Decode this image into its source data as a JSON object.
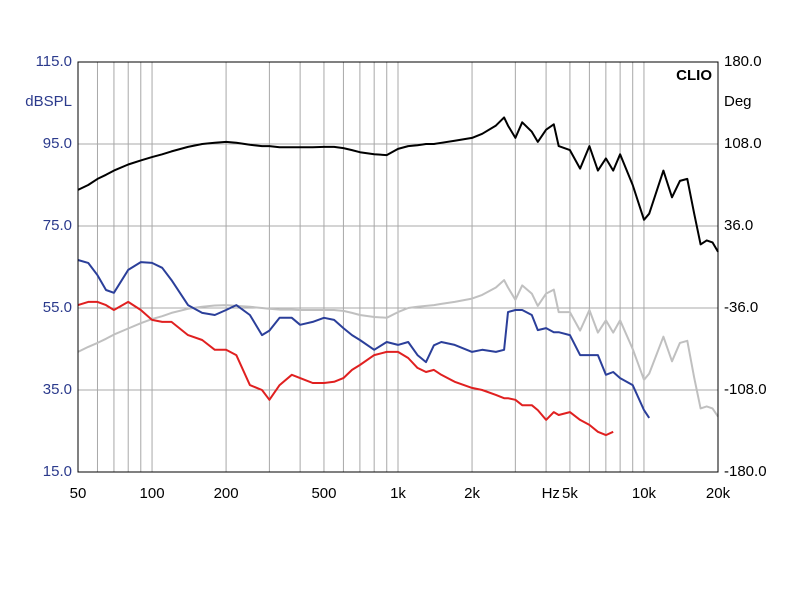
{
  "chart_data": {
    "type": "line",
    "brand": "CLIO",
    "ylabel": "dBSPL",
    "y2label": "Deg",
    "xlabel": "Hz",
    "xscale": "log",
    "grid": true,
    "xlim": [
      50,
      20000
    ],
    "xticks": [
      50,
      100,
      200,
      500,
      {
        "value": 1000,
        "label": "1k"
      },
      {
        "value": 2000,
        "label": "2k"
      },
      {
        "value": 5000,
        "label": "5k"
      },
      {
        "value": 10000,
        "label": "10k"
      },
      {
        "value": 20000,
        "label": "20k"
      }
    ],
    "x_minor_grid": [
      60,
      70,
      80,
      90,
      300,
      400,
      600,
      700,
      800,
      900,
      3000,
      4000,
      6000,
      7000,
      8000,
      9000
    ],
    "ylim": [
      15,
      115
    ],
    "yticks": [
      {
        "value": 15,
        "label": "15.0"
      },
      {
        "value": 35,
        "label": "35.0"
      },
      {
        "value": 55,
        "label": "55.0"
      },
      {
        "value": 75,
        "label": "75.0"
      },
      {
        "value": 95,
        "label": "95.0"
      },
      {
        "value": 115,
        "label": "115.0"
      }
    ],
    "y2lim": [
      -180,
      180
    ],
    "y2ticks": [
      {
        "value": -180,
        "label": "-180.0"
      },
      {
        "value": -108,
        "label": "-108.0"
      },
      {
        "value": -36,
        "label": "-36.0"
      },
      {
        "value": 36,
        "label": "36.0"
      },
      {
        "value": 108,
        "label": "108.0"
      },
      {
        "value": 180,
        "label": "180.0"
      }
    ],
    "x": [
      50,
      55,
      60,
      65,
      70,
      80,
      90,
      100,
      110,
      120,
      140,
      160,
      180,
      200,
      220,
      250,
      280,
      300,
      330,
      370,
      400,
      450,
      500,
      550,
      600,
      650,
      700,
      800,
      900,
      1000,
      1100,
      1200,
      1300,
      1400,
      1500,
      1700,
      2000,
      2200,
      2500,
      2700,
      2800,
      3000,
      3200,
      3500,
      3700,
      4000,
      4300,
      4500,
      5000,
      5500,
      6000,
      6500,
      7000,
      7500,
      8000,
      9000,
      10000,
      10500,
      12000,
      13000,
      14000,
      15000,
      16000,
      17000,
      18000,
      19000,
      20000
    ],
    "series": [
      {
        "color": "#000000",
        "values": [
          83.8,
          85,
          86.5,
          87.5,
          88.5,
          90,
          91,
          91.8,
          92.5,
          93.2,
          94.3,
          95,
          95.3,
          95.5,
          95.3,
          94.8,
          94.5,
          94.5,
          94.2,
          94.2,
          94.2,
          94.2,
          94.3,
          94.3,
          94,
          93.5,
          93,
          92.5,
          92.3,
          93.8,
          94.5,
          94.7,
          95,
          95,
          95.3,
          95.8,
          96.5,
          97.5,
          99.5,
          101.5,
          99.5,
          96.5,
          100.3,
          98,
          95.5,
          98.5,
          99.8,
          94.5,
          93.5,
          89,
          94.5,
          88.5,
          91.5,
          88.5,
          92.5,
          85,
          76.5,
          78,
          88.5,
          82,
          86,
          86.5,
          78,
          70.5,
          71.5,
          71,
          68.7
        ]
      },
      {
        "color": "#c0c0c0",
        "values": [
          44.3,
          45.5,
          46.5,
          47.5,
          48.5,
          50,
          51.3,
          52.3,
          53,
          53.8,
          54.8,
          55.3,
          55.6,
          55.7,
          55.5,
          55.3,
          55,
          54.8,
          54.6,
          54.6,
          54.5,
          54.5,
          54.5,
          54.5,
          54.3,
          53.8,
          53.3,
          52.8,
          52.6,
          54,
          55,
          55.3,
          55.5,
          55.7,
          56,
          56.5,
          57.3,
          58.2,
          60,
          61.8,
          60,
          57,
          60.5,
          58.5,
          55.5,
          58.5,
          59.5,
          54,
          54,
          49.5,
          54.5,
          49,
          52,
          49,
          52,
          45,
          37.5,
          39,
          48,
          42,
          46.5,
          47,
          38,
          30.5,
          31,
          30.5,
          28.5
        ]
      },
      {
        "color": "#2b3f9a",
        "values": [
          66.7,
          66,
          63,
          59.4,
          58.7,
          64.3,
          66.2,
          66,
          64.8,
          61.8,
          55.7,
          53.8,
          53.3,
          54.5,
          55.7,
          53.3,
          48.4,
          49.5,
          52.6,
          52.6,
          50.9,
          51.6,
          52.6,
          52.1,
          50.1,
          48.4,
          47.2,
          44.8,
          46.7,
          46,
          46.7,
          43.5,
          41.8,
          45.9,
          46.7,
          46,
          44.3,
          44.8,
          44.3,
          44.8,
          54,
          54.5,
          54.5,
          53.3,
          49.6,
          50.1,
          49.1,
          49.1,
          48.4,
          43.5,
          43.5,
          43.5,
          38.7,
          39.4,
          37.9,
          36.2,
          30.1,
          28.2,
          null,
          null,
          null,
          null,
          null,
          null,
          null,
          null,
          null
        ]
      },
      {
        "color": "#e02020",
        "values": [
          55.7,
          56.5,
          56.5,
          55.7,
          54.5,
          56.5,
          54.5,
          52.1,
          51.6,
          51.6,
          48.4,
          47.2,
          44.8,
          44.8,
          43.5,
          36.2,
          35,
          32.6,
          36.2,
          38.7,
          37.9,
          36.7,
          36.7,
          37,
          37.9,
          39.9,
          41.1,
          43.5,
          44.3,
          44.3,
          42.8,
          40.4,
          39.4,
          39.9,
          38.7,
          37,
          35.5,
          35,
          33.8,
          33,
          33,
          32.6,
          31.3,
          31.3,
          30.1,
          27.7,
          29.6,
          28.9,
          29.6,
          27.7,
          26.5,
          24.8,
          24,
          24.8,
          null,
          null,
          null,
          null,
          null,
          null,
          null,
          null,
          null,
          null,
          null,
          null,
          null
        ]
      }
    ]
  }
}
